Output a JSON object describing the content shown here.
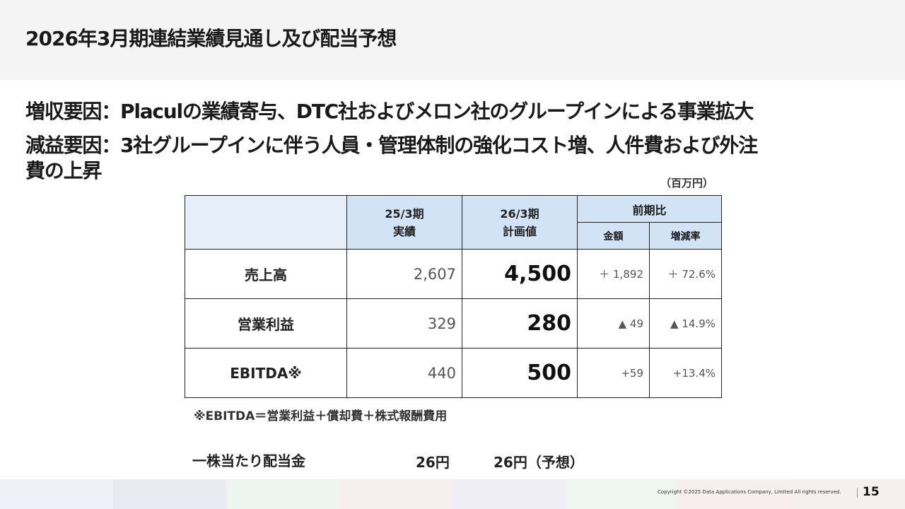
{
  "slide": {
    "title": "2026年3月期連結業績見通し及び配当予想",
    "page_number": "15",
    "copyright": "Copyright ©2025 Data Applications Company, Limited All rights reserved."
  },
  "factors": {
    "increase_revenue": "増収要因：Placulの業績寄与、DTC社およびメロン社のグループインによる事業拡大",
    "decrease_profit_line1": "減益要因：3社グループインに伴う人員・管理体制の強化コスト増、人件費および外注",
    "decrease_profit_line2": "費の上昇"
  },
  "table": {
    "unit": "（百万円）",
    "headers": {
      "prev_year_line1": "25/3期",
      "prev_year_line2": "実績",
      "plan_line1": "26/3期",
      "plan_line2": "計画値",
      "yoy": "前期比",
      "amount": "金額",
      "rate": "増減率"
    },
    "rows": [
      {
        "label": "売上高",
        "prev": "2,607",
        "plan": "4,500",
        "amount": "＋ 1,892",
        "rate": "＋ 72.6%"
      },
      {
        "label": "営業利益",
        "prev": "329",
        "plan": "280",
        "amount": "▲ 49",
        "rate": "▲ 14.9%"
      },
      {
        "label": "EBITDA※",
        "prev": "440",
        "plan": "500",
        "amount": "+59",
        "rate": "+13.4%"
      }
    ],
    "note": "※EBITDA＝営業利益＋償却費＋株式報酬費用"
  },
  "dividend": {
    "label": "一株当たり配当金",
    "prev": "26円",
    "forecast": "26円（予想）"
  },
  "colors": {
    "header_bg": "#f4f4f4",
    "table_header_blue": "#d2e3f6",
    "table_corner_blue": "#e6eefa",
    "footer_band": [
      "#eef1fa",
      "#e9e9f4",
      "#eef5f0",
      "#f7eef0",
      "#efeef7",
      "#eef6ef",
      "#f8eef0",
      "#f6efef"
    ]
  }
}
